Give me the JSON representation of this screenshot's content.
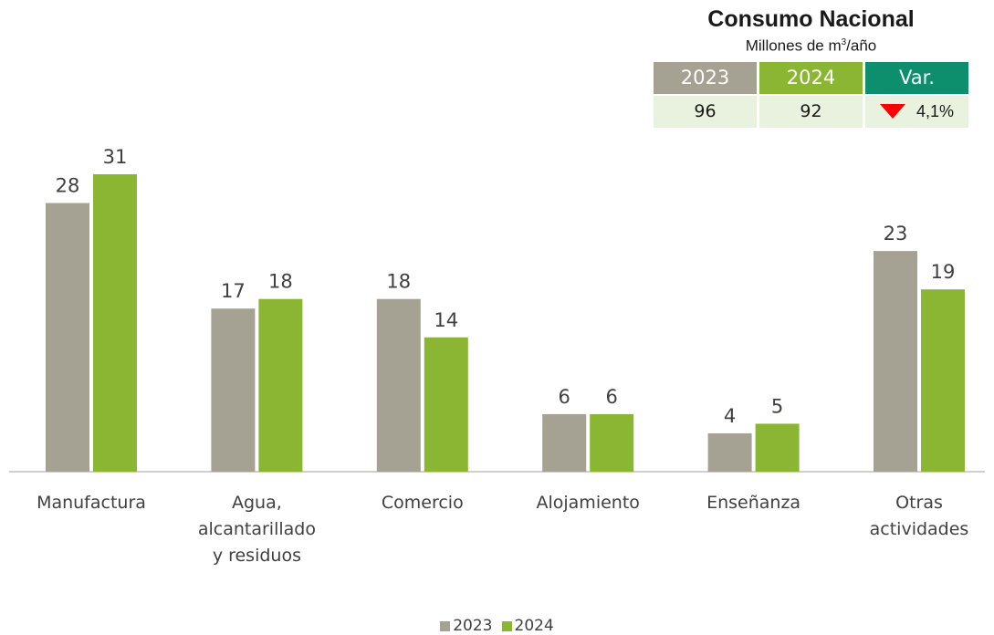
{
  "colors": {
    "y2023": "#a5a294",
    "y2024": "#8ab633",
    "var_header": "#0d8e6d",
    "axis": "#bfbfbf",
    "down_arrow": "#ff0000"
  },
  "summary": {
    "title": "Consumo  Nacional",
    "subtitle_prefix": "Millones de m",
    "subtitle_sup": "3",
    "subtitle_suffix": "/año",
    "headers": [
      "2023",
      "2024",
      "Var."
    ],
    "values": [
      "96",
      "92",
      "4,1%"
    ],
    "variation_icon": "down-triangle-icon"
  },
  "chart_data": {
    "type": "bar",
    "categories": [
      [
        "Manufactura"
      ],
      [
        "Agua,",
        "alcantarillado",
        "y residuos"
      ],
      [
        "Comercio"
      ],
      [
        "Alojamiento"
      ],
      [
        "Enseñanza"
      ],
      [
        "Otras",
        "actividades"
      ]
    ],
    "series": [
      {
        "name": "2023",
        "values": [
          28,
          17,
          18,
          6,
          4,
          23
        ]
      },
      {
        "name": "2024",
        "values": [
          31,
          18,
          14,
          6,
          5,
          19
        ]
      }
    ],
    "ylim": [
      0,
      31
    ],
    "grid": false,
    "legend_position": "bottom"
  }
}
